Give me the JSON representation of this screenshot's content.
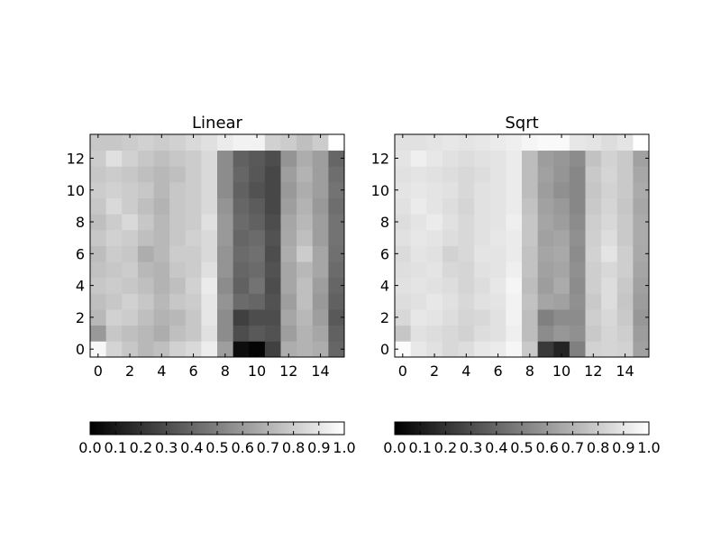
{
  "chart_data": [
    {
      "type": "heatmap",
      "title": "Linear",
      "colormap": "gray",
      "xlim": [
        -0.5,
        15.5
      ],
      "ylim": [
        -0.5,
        13.5
      ],
      "origin": "lower",
      "xticks": [
        0,
        2,
        4,
        6,
        8,
        10,
        12,
        14
      ],
      "yticks": [
        0,
        2,
        4,
        6,
        8,
        10,
        12
      ],
      "colorbar": {
        "orientation": "horizontal",
        "placement": "bottom",
        "ticks": [
          "0.0",
          "0.1",
          "0.2",
          "0.3",
          "0.4",
          "0.5",
          "0.6",
          "0.7",
          "0.8",
          "0.9",
          "1.0"
        ]
      },
      "z": [
        [
          0.97,
          0.83,
          0.78,
          0.72,
          0.75,
          0.82,
          0.85,
          0.93,
          0.62,
          0.05,
          0.02,
          0.25,
          0.68,
          0.7,
          0.68,
          0.4
        ],
        [
          0.6,
          0.78,
          0.75,
          0.72,
          0.68,
          0.75,
          0.78,
          0.88,
          0.55,
          0.3,
          0.35,
          0.32,
          0.62,
          0.7,
          0.65,
          0.38
        ],
        [
          0.72,
          0.82,
          0.8,
          0.75,
          0.7,
          0.72,
          0.78,
          0.9,
          0.55,
          0.25,
          0.3,
          0.3,
          0.65,
          0.72,
          0.62,
          0.35
        ],
        [
          0.75,
          0.78,
          0.82,
          0.78,
          0.72,
          0.78,
          0.8,
          0.9,
          0.58,
          0.42,
          0.4,
          0.32,
          0.62,
          0.75,
          0.6,
          0.38
        ],
        [
          0.78,
          0.8,
          0.78,
          0.75,
          0.7,
          0.75,
          0.82,
          0.92,
          0.55,
          0.38,
          0.45,
          0.3,
          0.65,
          0.75,
          0.62,
          0.4
        ],
        [
          0.76,
          0.78,
          0.8,
          0.72,
          0.7,
          0.78,
          0.8,
          0.88,
          0.58,
          0.4,
          0.42,
          0.32,
          0.65,
          0.72,
          0.65,
          0.42
        ],
        [
          0.74,
          0.8,
          0.78,
          0.68,
          0.72,
          0.8,
          0.8,
          0.85,
          0.58,
          0.42,
          0.44,
          0.3,
          0.68,
          0.8,
          0.65,
          0.44
        ],
        [
          0.78,
          0.82,
          0.8,
          0.75,
          0.72,
          0.78,
          0.82,
          0.85,
          0.6,
          0.4,
          0.42,
          0.32,
          0.66,
          0.75,
          0.62,
          0.45
        ],
        [
          0.75,
          0.8,
          0.85,
          0.78,
          0.72,
          0.78,
          0.8,
          0.88,
          0.6,
          0.42,
          0.38,
          0.3,
          0.65,
          0.72,
          0.62,
          0.45
        ],
        [
          0.78,
          0.85,
          0.8,
          0.75,
          0.7,
          0.78,
          0.8,
          0.85,
          0.58,
          0.4,
          0.36,
          0.28,
          0.62,
          0.7,
          0.6,
          0.43
        ],
        [
          0.8,
          0.82,
          0.8,
          0.78,
          0.72,
          0.78,
          0.8,
          0.85,
          0.55,
          0.38,
          0.32,
          0.28,
          0.6,
          0.68,
          0.62,
          0.45
        ],
        [
          0.78,
          0.8,
          0.78,
          0.75,
          0.72,
          0.75,
          0.8,
          0.85,
          0.55,
          0.4,
          0.34,
          0.28,
          0.62,
          0.7,
          0.62,
          0.43
        ],
        [
          0.8,
          0.88,
          0.82,
          0.78,
          0.75,
          0.78,
          0.8,
          0.85,
          0.55,
          0.38,
          0.35,
          0.3,
          0.58,
          0.68,
          0.62,
          0.4
        ],
        [
          0.78,
          0.78,
          0.8,
          0.82,
          0.8,
          0.82,
          0.85,
          0.88,
          0.92,
          0.95,
          0.95,
          0.82,
          0.8,
          0.75,
          0.8,
          1.0
        ]
      ]
    },
    {
      "type": "heatmap",
      "title": "Sqrt",
      "colormap": "gray",
      "transform": "sqrt",
      "xlim": [
        -0.5,
        15.5
      ],
      "ylim": [
        -0.5,
        13.5
      ],
      "origin": "lower",
      "xticks": [
        0,
        2,
        4,
        6,
        8,
        10,
        12,
        14
      ],
      "yticks": [
        0,
        2,
        4,
        6,
        8,
        10,
        12
      ],
      "colorbar": {
        "orientation": "horizontal",
        "placement": "bottom",
        "ticks": [
          "0.0",
          "0.1",
          "0.2",
          "0.3",
          "0.4",
          "0.5",
          "0.6",
          "0.7",
          "0.8",
          "0.9",
          "1.0"
        ]
      }
    }
  ]
}
